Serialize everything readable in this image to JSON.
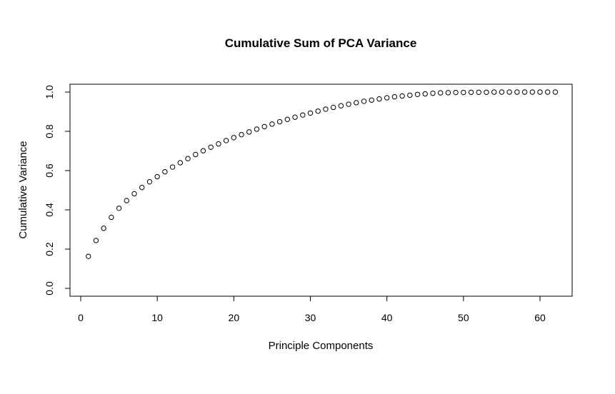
{
  "chart_data": {
    "type": "scatter",
    "title": "Cumulative Sum of PCA Variance",
    "xlabel": "Principle Components",
    "ylabel": "Cumulative Variance",
    "xlim": [
      0,
      62
    ],
    "ylim": [
      0,
      1
    ],
    "x_ticks": [
      "0",
      "10",
      "20",
      "30",
      "40",
      "50",
      "60"
    ],
    "y_ticks": [
      "0.0",
      "0.2",
      "0.4",
      "0.6",
      "0.8",
      "1.0"
    ],
    "marker": "open-circle",
    "grid": false,
    "x": [
      1,
      2,
      3,
      4,
      5,
      6,
      7,
      8,
      9,
      10,
      11,
      12,
      13,
      14,
      15,
      16,
      17,
      18,
      19,
      20,
      21,
      22,
      23,
      24,
      25,
      26,
      27,
      28,
      29,
      30,
      31,
      32,
      33,
      34,
      35,
      36,
      37,
      38,
      39,
      40,
      41,
      42,
      43,
      44,
      45,
      46,
      47,
      48,
      49,
      50,
      51,
      52,
      53,
      54,
      55,
      56,
      57,
      58,
      59,
      60,
      61,
      62
    ],
    "y": [
      0.163,
      0.244,
      0.306,
      0.362,
      0.408,
      0.447,
      0.482,
      0.514,
      0.543,
      0.569,
      0.594,
      0.618,
      0.64,
      0.661,
      0.682,
      0.701,
      0.719,
      0.736,
      0.753,
      0.768,
      0.783,
      0.797,
      0.811,
      0.824,
      0.837,
      0.849,
      0.861,
      0.872,
      0.883,
      0.893,
      0.903,
      0.913,
      0.922,
      0.93,
      0.938,
      0.946,
      0.953,
      0.959,
      0.965,
      0.971,
      0.976,
      0.98,
      0.984,
      0.988,
      0.991,
      0.994,
      0.996,
      0.997,
      0.998,
      0.998,
      0.999,
      0.999,
      0.999,
      1.0,
      1.0,
      1.0,
      1.0,
      1.0,
      1.0,
      1.0,
      1.0,
      1.0
    ]
  }
}
